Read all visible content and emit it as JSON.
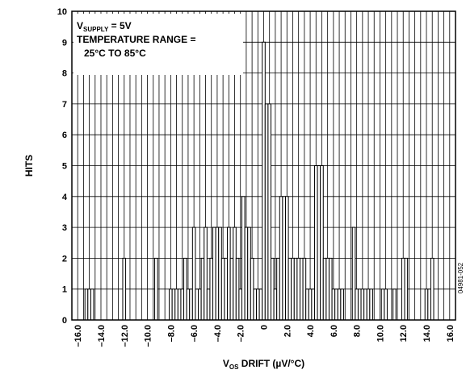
{
  "chart_data": {
    "type": "bar",
    "xlabel": {
      "main": "V",
      "sub": "OS",
      "rest": " DRIFT (µV/°C)"
    },
    "ylabel": "HITS",
    "xlim": [
      -16.5,
      16.5
    ],
    "ylim": [
      0,
      10
    ],
    "grid": true,
    "bin_width": 0.25,
    "x_ticks": [
      -16,
      -14,
      -12,
      -10,
      -8,
      -6,
      -4,
      -2,
      0,
      2,
      4,
      6,
      8,
      10,
      12,
      14,
      16
    ],
    "x_tick_labels": [
      "–16.0",
      "–14.0",
      "–12.0",
      "–10.0",
      "–8.0",
      "–6.0",
      "–4.0",
      "–2.0",
      "0",
      "2.0",
      "4.0",
      "6.0",
      "8.0",
      "10.0",
      "12.0",
      "14.0",
      "16.0"
    ],
    "y_ticks": [
      0,
      1,
      2,
      3,
      4,
      5,
      6,
      7,
      8,
      9,
      10
    ],
    "y_tick_labels": [
      "0",
      "1",
      "2",
      "3",
      "4",
      "5",
      "6",
      "7",
      "8",
      "9",
      "10"
    ],
    "annotation": {
      "line1_main": "V",
      "line1_sub": "SUPPLY",
      "line1_rest": " = 5V",
      "line2": "TEMPERATURE RANGE =",
      "line3": "25°C TO 85°C"
    },
    "figure_id": "04981-052",
    "bars": [
      {
        "x": -15.25,
        "y": 1
      },
      {
        "x": -15.0,
        "y": 1
      },
      {
        "x": -14.75,
        "y": 1
      },
      {
        "x": -12.0,
        "y": 2
      },
      {
        "x": -9.25,
        "y": 2
      },
      {
        "x": -8.0,
        "y": 1
      },
      {
        "x": -7.75,
        "y": 1
      },
      {
        "x": -7.5,
        "y": 1
      },
      {
        "x": -7.25,
        "y": 1
      },
      {
        "x": -7.0,
        "y": 1
      },
      {
        "x": -6.75,
        "y": 2
      },
      {
        "x": -6.5,
        "y": 1
      },
      {
        "x": -6.25,
        "y": 1
      },
      {
        "x": -6.0,
        "y": 3
      },
      {
        "x": -5.75,
        "y": 1
      },
      {
        "x": -5.5,
        "y": 1
      },
      {
        "x": -5.25,
        "y": 2
      },
      {
        "x": -5.0,
        "y": 3
      },
      {
        "x": -4.75,
        "y": 1
      },
      {
        "x": -4.5,
        "y": 2
      },
      {
        "x": -4.25,
        "y": 3
      },
      {
        "x": -4.0,
        "y": 3
      },
      {
        "x": -3.75,
        "y": 3
      },
      {
        "x": -3.5,
        "y": 2
      },
      {
        "x": -3.25,
        "y": 2
      },
      {
        "x": -3.0,
        "y": 3
      },
      {
        "x": -2.75,
        "y": 2
      },
      {
        "x": -2.5,
        "y": 3
      },
      {
        "x": -2.25,
        "y": 2
      },
      {
        "x": -2.0,
        "y": 1
      },
      {
        "x": -1.75,
        "y": 4
      },
      {
        "x": -1.5,
        "y": 3
      },
      {
        "x": -1.25,
        "y": 3
      },
      {
        "x": -1.0,
        "y": 2
      },
      {
        "x": -0.75,
        "y": 1
      },
      {
        "x": -0.5,
        "y": 1
      },
      {
        "x": -0.25,
        "y": 1
      },
      {
        "x": 0.0,
        "y": 9
      },
      {
        "x": 0.25,
        "y": 7
      },
      {
        "x": 0.5,
        "y": 7
      },
      {
        "x": 0.75,
        "y": 2
      },
      {
        "x": 1.0,
        "y": 1
      },
      {
        "x": 1.25,
        "y": 2
      },
      {
        "x": 1.5,
        "y": 4
      },
      {
        "x": 1.75,
        "y": 4
      },
      {
        "x": 2.0,
        "y": 4
      },
      {
        "x": 2.25,
        "y": 2
      },
      {
        "x": 2.5,
        "y": 2
      },
      {
        "x": 2.75,
        "y": 2
      },
      {
        "x": 3.0,
        "y": 2
      },
      {
        "x": 3.25,
        "y": 2
      },
      {
        "x": 3.5,
        "y": 2
      },
      {
        "x": 3.75,
        "y": 1
      },
      {
        "x": 4.0,
        "y": 1
      },
      {
        "x": 4.25,
        "y": 1
      },
      {
        "x": 4.5,
        "y": 5
      },
      {
        "x": 4.75,
        "y": 5
      },
      {
        "x": 5.0,
        "y": 5
      },
      {
        "x": 5.25,
        "y": 2
      },
      {
        "x": 5.5,
        "y": 2
      },
      {
        "x": 5.75,
        "y": 2
      },
      {
        "x": 6.0,
        "y": 1
      },
      {
        "x": 6.25,
        "y": 1
      },
      {
        "x": 6.5,
        "y": 1
      },
      {
        "x": 6.75,
        "y": 1
      },
      {
        "x": 7.75,
        "y": 3
      },
      {
        "x": 8.0,
        "y": 1
      },
      {
        "x": 8.25,
        "y": 1
      },
      {
        "x": 8.5,
        "y": 1
      },
      {
        "x": 8.75,
        "y": 1
      },
      {
        "x": 9.0,
        "y": 1
      },
      {
        "x": 9.25,
        "y": 1
      },
      {
        "x": 10.25,
        "y": 1
      },
      {
        "x": 10.5,
        "y": 1
      },
      {
        "x": 11.25,
        "y": 1
      },
      {
        "x": 12.0,
        "y": 2
      },
      {
        "x": 12.25,
        "y": 2
      },
      {
        "x": 14.0,
        "y": 1
      },
      {
        "x": 14.25,
        "y": 1
      },
      {
        "x": 14.5,
        "y": 2
      }
    ]
  }
}
